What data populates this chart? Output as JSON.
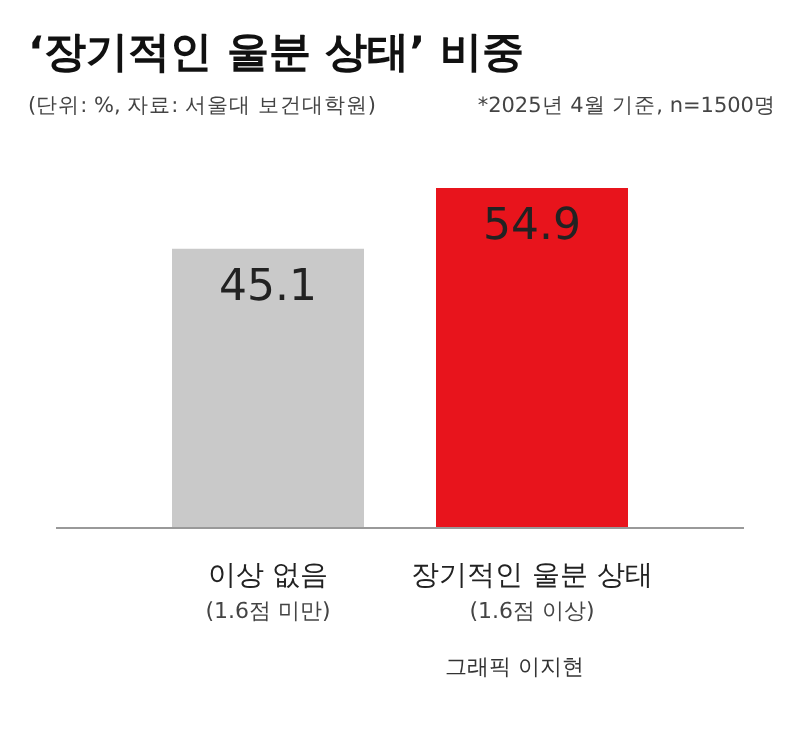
{
  "chart_data": {
    "type": "bar",
    "title": "‘장기적인 울분 상태’ 비중",
    "subtitle": "(단위: %, 자료: 서울대 보건대학원)",
    "annotations": [
      "*2025년 4월 기준, n=1500명",
      "그래픽 이지현"
    ],
    "categories": [
      "이상 없음\n(1.6점 미만)",
      "장기적인 울분 상태\n(1.6점 이상)"
    ],
    "values": [
      45.1,
      54.9
    ],
    "colors": [
      "#c9c9c9",
      "#e8141c"
    ],
    "data_labels": true
  }
}
